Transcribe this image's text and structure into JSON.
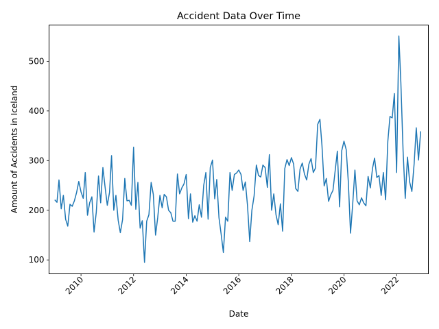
{
  "chart_data": {
    "type": "line",
    "title": "Accident Data Over Time",
    "xlabel": "Date",
    "ylabel": "Amount of Accidents in Iceland",
    "x_start": "2009-01",
    "x_step": "1 month",
    "x_ticks": [
      "2010",
      "2012",
      "2014",
      "2016",
      "2018",
      "2020",
      "2022"
    ],
    "y_ticks": [
      100,
      200,
      300,
      400,
      500
    ],
    "xlim": [
      "2008-10-14",
      "2023-03-18"
    ],
    "ylim": [
      72,
      573
    ],
    "grid": false,
    "legend": false,
    "series": [
      {
        "color": "#1f77b4",
        "values": [
          221,
          216,
          261,
          203,
          230,
          182,
          168,
          212,
          208,
          219,
          236,
          258,
          237,
          224,
          276,
          190,
          215,
          227,
          156,
          196,
          269,
          215,
          286,
          247,
          210,
          236,
          310,
          200,
          230,
          180,
          155,
          181,
          264,
          219,
          220,
          210,
          327,
          202,
          256,
          164,
          179,
          95,
          178,
          191,
          256,
          232,
          150,
          185,
          230,
          205,
          232,
          227,
          200,
          195,
          178,
          178,
          273,
          233,
          245,
          253,
          272,
          183,
          233,
          176,
          189,
          178,
          211,
          186,
          250,
          276,
          182,
          286,
          301,
          223,
          262,
          185,
          152,
          115,
          186,
          178,
          276,
          240,
          272,
          275,
          281,
          272,
          240,
          257,
          210,
          137,
          200,
          229,
          291,
          270,
          267,
          291,
          286,
          246,
          312,
          200,
          233,
          191,
          171,
          213,
          158,
          284,
          302,
          290,
          306,
          293,
          244,
          238,
          283,
          295,
          273,
          261,
          293,
          304,
          276,
          285,
          373,
          383,
          331,
          249,
          264,
          218,
          231,
          240,
          280,
          319,
          207,
          320,
          339,
          322,
          258,
          154,
          212,
          281,
          219,
          211,
          225,
          215,
          209,
          268,
          245,
          285,
          305,
          266,
          270,
          230,
          276,
          221,
          339,
          389,
          386,
          435,
          276,
          551,
          457,
          319,
          224,
          307,
          257,
          238,
          293,
          366,
          301,
          359
        ]
      }
    ]
  }
}
